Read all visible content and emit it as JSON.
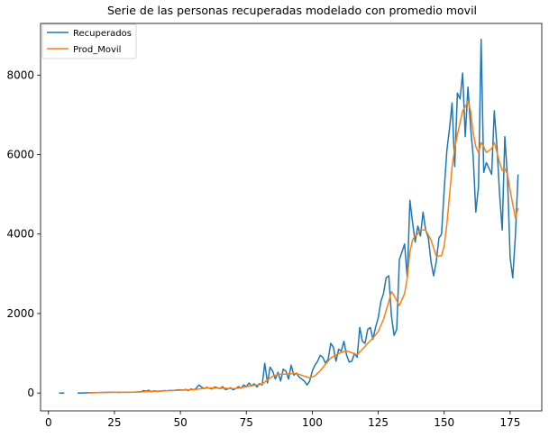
{
  "chart_data": {
    "type": "line",
    "title": "Serie de las personas recuperadas modelado con promedio movil",
    "xlabel": "",
    "ylabel": "",
    "xlim": [
      -3,
      187
    ],
    "ylim": [
      -450,
      9300
    ],
    "xticks": [
      0,
      25,
      50,
      75,
      100,
      125,
      150,
      175
    ],
    "yticks": [
      0,
      2000,
      4000,
      6000,
      8000
    ],
    "grid": false,
    "legend": "top-left",
    "series": [
      {
        "name": "Recuperados",
        "color": "#1f77b4",
        "segments": [
          [
            [
              4,
              0
            ],
            [
              6,
              0
            ]
          ],
          [
            [
              11,
              0
            ],
            [
              13,
              2
            ],
            [
              15,
              5
            ],
            [
              17,
              8
            ],
            [
              19,
              12
            ],
            [
              21,
              15
            ],
            [
              23,
              18
            ],
            [
              25,
              20
            ],
            [
              27,
              15
            ],
            [
              29,
              22
            ],
            [
              31,
              18
            ],
            [
              33,
              25
            ],
            [
              35,
              30
            ],
            [
              36,
              60
            ],
            [
              37,
              45
            ],
            [
              38,
              70
            ],
            [
              39,
              30
            ],
            [
              40,
              55
            ],
            [
              41,
              40
            ],
            [
              42,
              45
            ],
            [
              43,
              50
            ],
            [
              44,
              60
            ],
            [
              45,
              55
            ],
            [
              46,
              65
            ],
            [
              47,
              60
            ],
            [
              48,
              70
            ],
            [
              49,
              75
            ],
            [
              50,
              80
            ],
            [
              51,
              70
            ],
            [
              52,
              90
            ],
            [
              53,
              60
            ],
            [
              54,
              100
            ],
            [
              55,
              80
            ],
            [
              56,
              120
            ],
            [
              57,
              200
            ],
            [
              58,
              150
            ],
            [
              59,
              110
            ],
            [
              60,
              140
            ],
            [
              61,
              120
            ],
            [
              62,
              100
            ],
            [
              63,
              150
            ],
            [
              64,
              130
            ],
            [
              65,
              110
            ],
            [
              66,
              160
            ],
            [
              67,
              90
            ],
            [
              68,
              100
            ],
            [
              69,
              130
            ],
            [
              70,
              80
            ],
            [
              71,
              110
            ],
            [
              72,
              160
            ],
            [
              73,
              120
            ],
            [
              74,
              200
            ],
            [
              75,
              160
            ],
            [
              76,
              250
            ],
            [
              77,
              180
            ],
            [
              78,
              230
            ],
            [
              79,
              150
            ],
            [
              80,
              240
            ],
            [
              81,
              200
            ],
            [
              82,
              750
            ],
            [
              83,
              250
            ],
            [
              84,
              650
            ],
            [
              85,
              550
            ],
            [
              86,
              350
            ],
            [
              87,
              520
            ],
            [
              88,
              300
            ],
            [
              89,
              600
            ],
            [
              90,
              550
            ],
            [
              91,
              350
            ],
            [
              92,
              700
            ],
            [
              93,
              450
            ],
            [
              94,
              500
            ],
            [
              95,
              400
            ],
            [
              96,
              350
            ],
            [
              97,
              300
            ],
            [
              98,
              200
            ],
            [
              99,
              300
            ],
            [
              100,
              550
            ],
            [
              101,
              700
            ],
            [
              102,
              800
            ],
            [
              103,
              950
            ],
            [
              104,
              900
            ],
            [
              105,
              750
            ],
            [
              106,
              850
            ],
            [
              107,
              1250
            ],
            [
              108,
              1150
            ],
            [
              109,
              800
            ],
            [
              110,
              1100
            ],
            [
              111,
              1050
            ],
            [
              112,
              1300
            ],
            [
              113,
              950
            ],
            [
              114,
              780
            ],
            [
              115,
              800
            ],
            [
              116,
              1000
            ],
            [
              117,
              900
            ],
            [
              118,
              1650
            ],
            [
              119,
              1300
            ],
            [
              120,
              1250
            ],
            [
              121,
              1600
            ],
            [
              122,
              1650
            ],
            [
              123,
              1350
            ],
            [
              124,
              1650
            ],
            [
              125,
              1900
            ],
            [
              126,
              2300
            ],
            [
              127,
              2500
            ],
            [
              128,
              2900
            ],
            [
              129,
              2950
            ],
            [
              130,
              1950
            ],
            [
              131,
              1450
            ],
            [
              132,
              1600
            ],
            [
              133,
              3350
            ],
            [
              134,
              3550
            ],
            [
              135,
              3750
            ],
            [
              136,
              2900
            ],
            [
              137,
              4850
            ],
            [
              138,
              4300
            ],
            [
              139,
              3800
            ],
            [
              140,
              4200
            ],
            [
              141,
              3950
            ],
            [
              142,
              4550
            ],
            [
              143,
              4100
            ],
            [
              144,
              3900
            ],
            [
              145,
              3300
            ],
            [
              146,
              2950
            ],
            [
              147,
              3300
            ],
            [
              148,
              3900
            ],
            [
              149,
              4000
            ],
            [
              150,
              5100
            ],
            [
              151,
              6100
            ],
            [
              152,
              6650
            ],
            [
              153,
              7300
            ],
            [
              154,
              5700
            ],
            [
              155,
              7550
            ],
            [
              156,
              7400
            ],
            [
              157,
              8050
            ],
            [
              158,
              6450
            ],
            [
              159,
              7700
            ],
            [
              160,
              6700
            ],
            [
              161,
              5950
            ],
            [
              162,
              4550
            ],
            [
              163,
              5200
            ],
            [
              164,
              8900
            ],
            [
              165,
              5550
            ],
            [
              166,
              5800
            ],
            [
              167,
              5650
            ],
            [
              168,
              5500
            ],
            [
              169,
              7100
            ],
            [
              170,
              6200
            ],
            [
              171,
              5000
            ],
            [
              172,
              4100
            ],
            [
              173,
              6450
            ],
            [
              174,
              5400
            ],
            [
              175,
              3400
            ],
            [
              176,
              2900
            ],
            [
              177,
              3950
            ],
            [
              178,
              5500
            ]
          ]
        ]
      },
      {
        "name": "Prod_Movil",
        "color": "#ff7f0e",
        "segments": [
          [
            [
              15,
              2
            ],
            [
              17,
              5
            ],
            [
              19,
              9
            ],
            [
              21,
              12
            ],
            [
              23,
              14
            ],
            [
              25,
              16
            ],
            [
              27,
              17
            ],
            [
              29,
              18
            ],
            [
              31,
              19
            ],
            [
              33,
              22
            ],
            [
              35,
              26
            ],
            [
              37,
              35
            ],
            [
              39,
              42
            ],
            [
              41,
              46
            ],
            [
              43,
              48
            ],
            [
              45,
              54
            ],
            [
              47,
              60
            ],
            [
              49,
              66
            ],
            [
              51,
              72
            ],
            [
              53,
              78
            ],
            [
              55,
              85
            ],
            [
              57,
              100
            ],
            [
              59,
              118
            ],
            [
              61,
              125
            ],
            [
              63,
              122
            ],
            [
              65,
              120
            ],
            [
              67,
              118
            ],
            [
              69,
              110
            ],
            [
              71,
              115
            ],
            [
              73,
              130
            ],
            [
              75,
              160
            ],
            [
              77,
              185
            ],
            [
              79,
              200
            ],
            [
              81,
              220
            ],
            [
              83,
              330
            ],
            [
              85,
              420
            ],
            [
              87,
              470
            ],
            [
              89,
              470
            ],
            [
              91,
              480
            ],
            [
              93,
              490
            ],
            [
              95,
              470
            ],
            [
              97,
              420
            ],
            [
              99,
              380
            ],
            [
              101,
              430
            ],
            [
              103,
              560
            ],
            [
              105,
              720
            ],
            [
              107,
              880
            ],
            [
              109,
              960
            ],
            [
              111,
              1020
            ],
            [
              113,
              1060
            ],
            [
              115,
              1010
            ],
            [
              117,
              960
            ],
            [
              119,
              1100
            ],
            [
              121,
              1250
            ],
            [
              123,
              1380
            ],
            [
              125,
              1550
            ],
            [
              127,
              1850
            ],
            [
              129,
              2300
            ],
            [
              130,
              2550
            ],
            [
              131,
              2450
            ],
            [
              133,
              2200
            ],
            [
              135,
              2500
            ],
            [
              136,
              2900
            ],
            [
              137,
              3550
            ],
            [
              138,
              3850
            ],
            [
              139,
              3950
            ],
            [
              140,
              4000
            ],
            [
              141,
              4100
            ],
            [
              143,
              4100
            ],
            [
              145,
              3850
            ],
            [
              147,
              3450
            ],
            [
              149,
              3450
            ],
            [
              150,
              3700
            ],
            [
              151,
              4250
            ],
            [
              152,
              4950
            ],
            [
              153,
              5700
            ],
            [
              154,
              6150
            ],
            [
              155,
              6500
            ],
            [
              156,
              6800
            ],
            [
              157,
              7100
            ],
            [
              158,
              7200
            ],
            [
              159,
              7350
            ],
            [
              160,
              7100
            ],
            [
              161,
              6550
            ],
            [
              162,
              6200
            ],
            [
              163,
              6050
            ],
            [
              164,
              6300
            ],
            [
              165,
              6200
            ],
            [
              166,
              6050
            ],
            [
              167,
              6100
            ],
            [
              168,
              6150
            ],
            [
              169,
              6300
            ],
            [
              170,
              6050
            ],
            [
              171,
              5800
            ],
            [
              172,
              5600
            ],
            [
              173,
              5650
            ],
            [
              174,
              5500
            ],
            [
              175,
              5100
            ],
            [
              176,
              4750
            ],
            [
              177,
              4400
            ],
            [
              178,
              4650
            ]
          ]
        ]
      }
    ]
  }
}
